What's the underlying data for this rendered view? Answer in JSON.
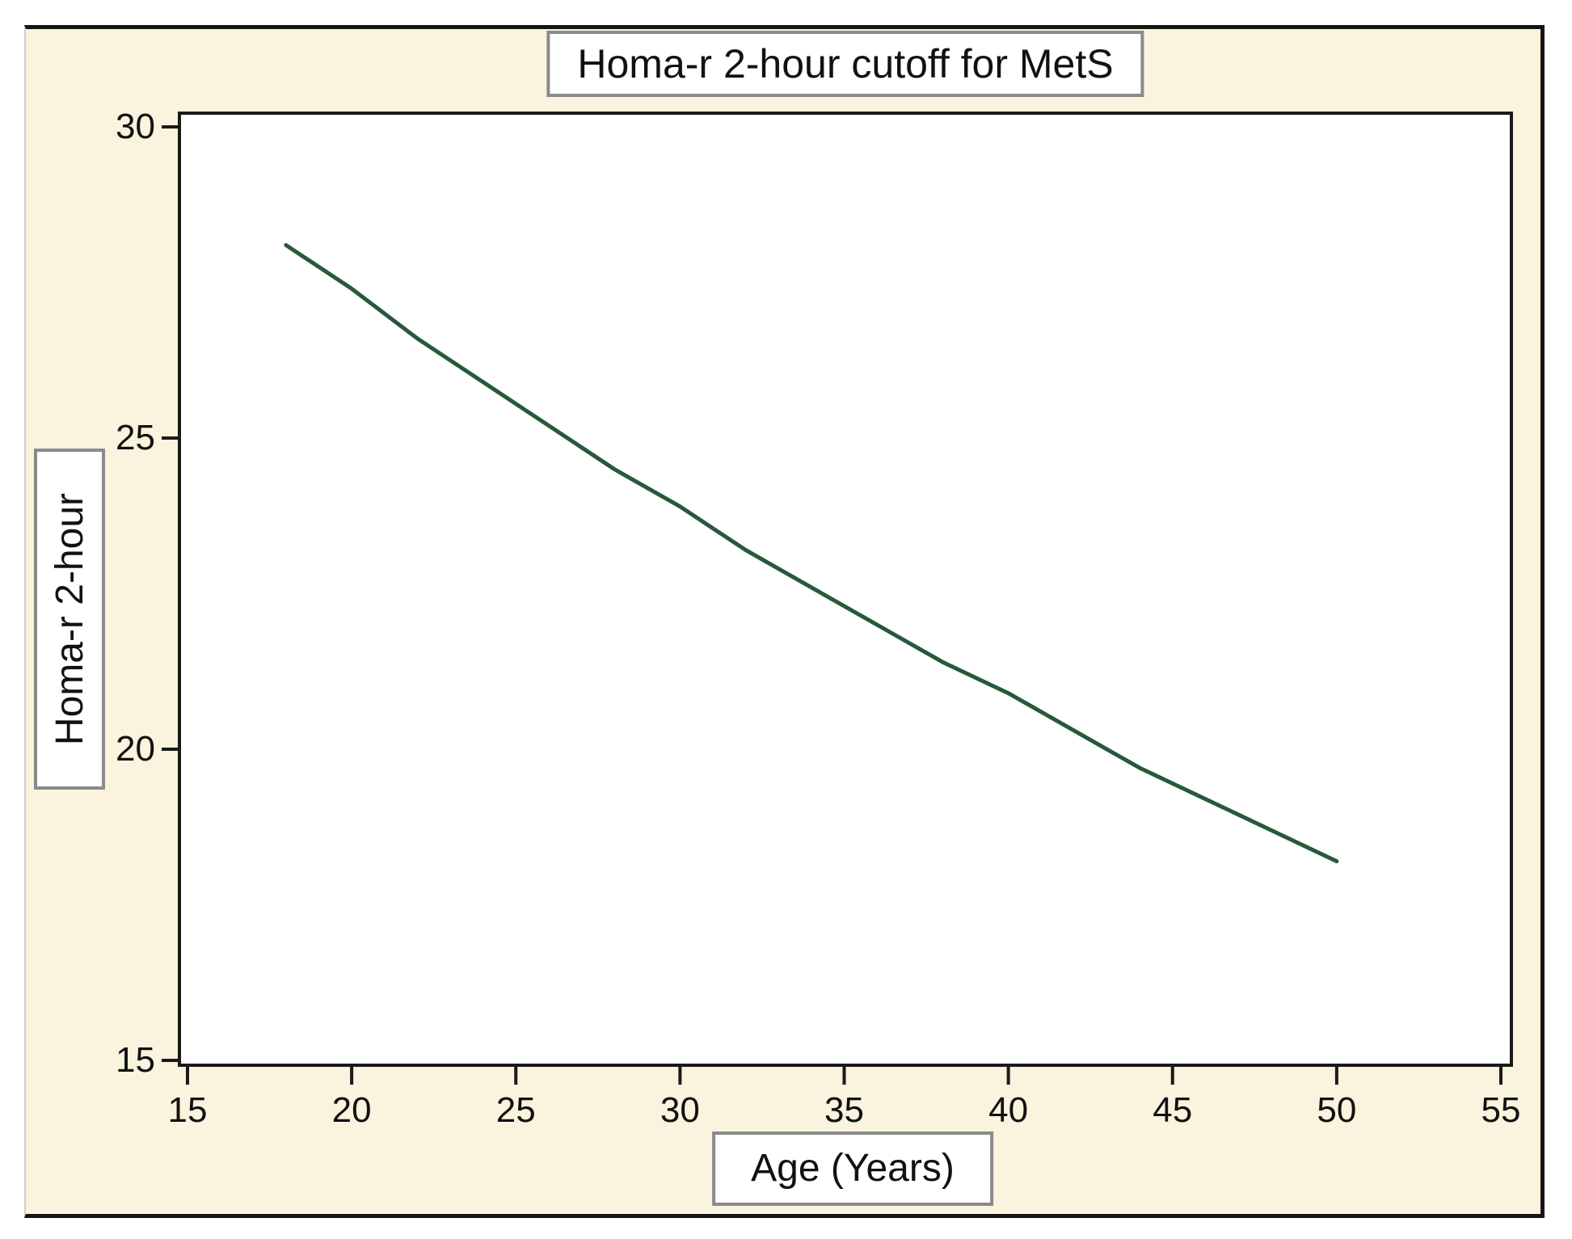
{
  "page": {
    "title": "Homa-r 2-hour cutoff for MetS",
    "x_axis_label": "Age (Years)",
    "y_axis_label": "Homa-r 2-hour"
  },
  "chart_data": {
    "type": "line",
    "title": "Homa-r 2-hour cutoff for MetS",
    "xlabel": "Age (Years)",
    "ylabel": "Homa-r 2-hour",
    "xlim": [
      15,
      55
    ],
    "ylim": [
      15,
      30
    ],
    "x_ticks": [
      15,
      20,
      25,
      30,
      35,
      40,
      45,
      50,
      55
    ],
    "y_ticks": [
      15,
      20,
      25,
      30
    ],
    "grid": false,
    "legend_position": "none",
    "line_color": "#27593a",
    "axis_color": "#1a1a1a",
    "background_color": "#faf3dd",
    "plot_background": "#ffffff",
    "series": [
      {
        "name": "Homa-r 2-hour cutoff",
        "x": [
          18,
          20,
          22,
          24,
          26,
          28,
          30,
          32,
          34,
          36,
          38,
          40,
          42,
          44,
          46,
          48,
          50
        ],
        "y": [
          28.1,
          27.4,
          26.6,
          25.9,
          25.2,
          24.5,
          23.9,
          23.2,
          22.6,
          22.0,
          21.4,
          20.9,
          20.3,
          19.7,
          19.2,
          18.7,
          18.2
        ]
      }
    ]
  }
}
